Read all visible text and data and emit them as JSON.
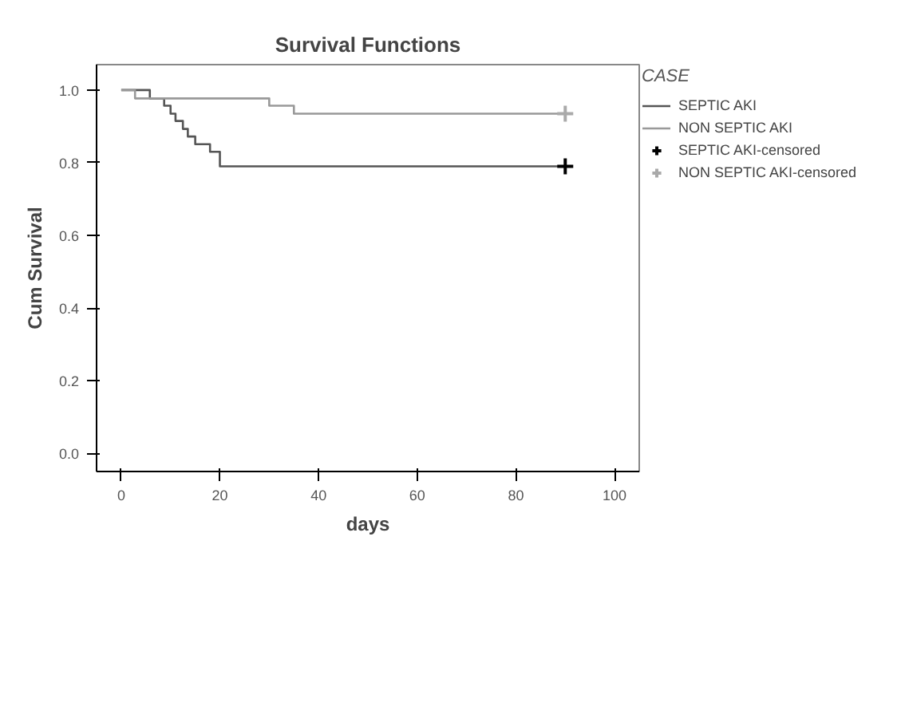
{
  "chart_data": {
    "type": "step",
    "title": "Survival Functions",
    "xlabel": "days",
    "ylabel": "Cum Survival",
    "legend_title": "CASE",
    "legend": "right",
    "grid": false,
    "xlim": [
      -5,
      105
    ],
    "ylim": [
      -0.05,
      1.07
    ],
    "xticks": [
      0,
      20,
      40,
      60,
      80,
      100
    ],
    "yticks": [
      {
        "value": 0,
        "label": "0.0"
      },
      {
        "value": 0.2,
        "label": "0.2"
      },
      {
        "value": 0.4,
        "label": "0.4"
      },
      {
        "value": 0.6,
        "label": "0.6"
      },
      {
        "value": 0.8,
        "label": "0.8"
      },
      {
        "value": 1,
        "label": "1.0"
      }
    ],
    "series": [
      {
        "name": "SEPTIC AKI",
        "color": "#555555",
        "marker": "none",
        "x": [
          0,
          5.8,
          8.7,
          10,
          11,
          12.5,
          13.5,
          15,
          18,
          20,
          90
        ],
        "values": [
          1.0,
          0.977,
          0.957,
          0.935,
          0.915,
          0.893,
          0.872,
          0.851,
          0.83,
          0.79,
          0.79
        ]
      },
      {
        "name": "NON SEPTIC AKI",
        "color": "#999999",
        "marker": "none",
        "x": [
          0,
          2.8,
          30,
          35,
          90
        ],
        "values": [
          1.0,
          0.977,
          0.957,
          0.935,
          0.935
        ]
      },
      {
        "name": "SEPTIC AKI-censored",
        "color": "#000000",
        "type": "scatter",
        "marker": "cross",
        "x": [
          90
        ],
        "values": [
          0.79
        ]
      },
      {
        "name": "NON SEPTIC AKI-censored",
        "color": "#aaaaaa",
        "type": "scatter",
        "marker": "cross",
        "x": [
          90
        ],
        "values": [
          0.935
        ]
      }
    ]
  }
}
